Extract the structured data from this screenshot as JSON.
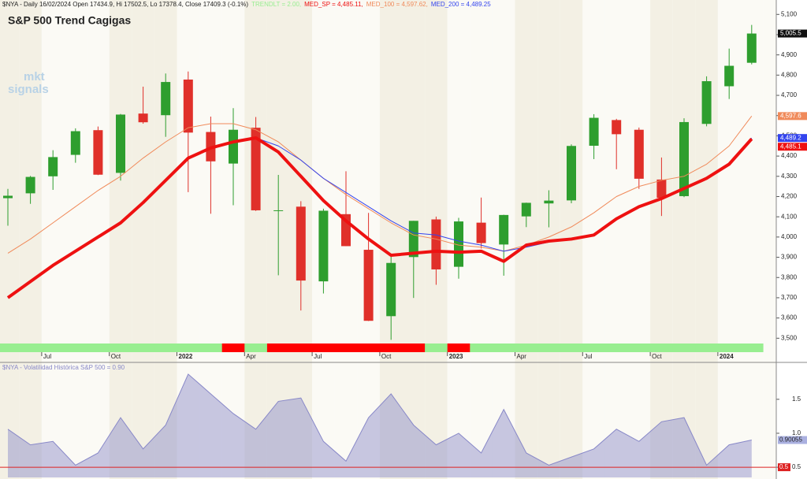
{
  "chart_data": [
    {
      "type": "candlestick",
      "header": "$NYA - Daily 16/02/2024 Open 17434.9, Hi 17502.5, Lo 17378.4, Close 17409.3 (-0.1%)",
      "title": "S&P 500 Trend Cagigas",
      "watermark": [
        "mkt",
        "signals"
      ],
      "categories": [
        null,
        null,
        "Jul",
        null,
        null,
        "Oct",
        null,
        null,
        "2022",
        null,
        null,
        "Apr",
        null,
        null,
        "Jul",
        null,
        null,
        "Oct",
        null,
        null,
        "2023",
        null,
        null,
        "Apr",
        null,
        null,
        "Jul",
        null,
        null,
        "Oct",
        null,
        null,
        "2024",
        null
      ],
      "open": [
        4192,
        4216,
        4300,
        4406,
        4528,
        4317,
        4610,
        4602,
        4778,
        4519,
        4363,
        4540,
        4130,
        4150,
        3781,
        4113,
        3937,
        3609,
        3901,
        4087,
        3853,
        4071,
        3963,
        4102,
        4166,
        4181,
        4451,
        4578,
        4530,
        4284,
        4202,
        4559,
        4745,
        4861
      ],
      "high": [
        4238,
        4302,
        4429,
        4537,
        4546,
        4608,
        4743,
        4808,
        4818,
        4595,
        4637,
        4593,
        4307,
        4177,
        4140,
        4325,
        4119,
        3906,
        4080,
        4101,
        4095,
        4195,
        4110,
        4170,
        4231,
        4458,
        4607,
        4584,
        4541,
        4393,
        4587,
        4794,
        4931,
        5048
      ],
      "low": [
        4056,
        4164,
        4233,
        4367,
        4306,
        4279,
        4560,
        4495,
        4222,
        4115,
        4157,
        4129,
        3811,
        3637,
        3721,
        3955,
        3585,
        3492,
        3699,
        3764,
        3794,
        3943,
        3809,
        4049,
        4048,
        4167,
        4385,
        4335,
        4238,
        4104,
        4197,
        4547,
        4682,
        4853
      ],
      "close": [
        4204,
        4297,
        4395,
        4523,
        4308,
        4605,
        4567,
        4766,
        4516,
        4374,
        4530,
        4132,
        4132,
        3785,
        4130,
        3955,
        3586,
        3872,
        4080,
        3840,
        4077,
        3970,
        4109,
        4169,
        4180,
        4450,
        4589,
        4508,
        4288,
        4194,
        4568,
        4770,
        4846,
        5005.5
      ],
      "last_label": "5,005.5",
      "up_color": "#2e9e2e",
      "down_color": "#e0302a",
      "trend": {
        "name": "TRENDLT = 2.00,",
        "colors": [
          "#98ee90",
          "#98ee90",
          "#98ee90",
          "#98ee90",
          "#98ee90",
          "#98ee90",
          "#98ee90",
          "#98ee90",
          "#98ee90",
          "#98ee90",
          "#ff0000",
          "#98ee90",
          "#ff0000",
          "#ff0000",
          "#ff0000",
          "#ff0000",
          "#ff0000",
          "#ff0000",
          "#ff0000",
          "#98ee90",
          "#ff0000",
          "#98ee90",
          "#98ee90",
          "#98ee90",
          "#98ee90",
          "#98ee90",
          "#98ee90",
          "#98ee90",
          "#98ee90",
          "#98ee90",
          "#98ee90",
          "#98ee90",
          "#98ee90",
          "#98ee90"
        ]
      },
      "series": [
        {
          "name": "MED_SP = 4,485.11,",
          "color": "#ee1111",
          "width": 4,
          "last_label": "4,485.1",
          "values": [
            3700,
            3780,
            3860,
            3930,
            4000,
            4070,
            4170,
            4280,
            4390,
            4440,
            4470,
            4490,
            4420,
            4300,
            4180,
            4080,
            3990,
            3910,
            3920,
            3930,
            3925,
            3930,
            3880,
            3960,
            3980,
            3990,
            4010,
            4090,
            4150,
            4190,
            4240,
            4290,
            4360,
            4485.11
          ]
        },
        {
          "name": "MED_100 = 4,597.62,",
          "color": "#f08a5a",
          "width": 1,
          "last_label": "4,597.6",
          "values": [
            3920,
            3990,
            4070,
            4150,
            4230,
            4300,
            4390,
            4470,
            4540,
            4560,
            4560,
            4530,
            4470,
            4380,
            4290,
            4210,
            4140,
            4070,
            4010,
            3990,
            3960,
            3950,
            3930,
            3960,
            4000,
            4050,
            4120,
            4200,
            4250,
            4280,
            4300,
            4360,
            4450,
            4597.62
          ]
        },
        {
          "name": "MED_200 = 4,489.25",
          "color": "#3344ee",
          "width": 1,
          "last_label": "4,489.2",
          "values": [
            3700,
            3780,
            3860,
            3930,
            4000,
            4070,
            4170,
            4280,
            4390,
            4440,
            4470,
            4490,
            4450,
            4380,
            4290,
            4220,
            4150,
            4080,
            4020,
            4010,
            3980,
            3960,
            3930,
            3950,
            3975,
            3990,
            4010,
            4090,
            4150,
            4190,
            4240,
            4290,
            4360,
            4489.25
          ]
        }
      ],
      "ylim": [
        3400,
        5140
      ],
      "yticks": [
        {
          "value": 3500,
          "label": "3,500"
        },
        {
          "value": 3600,
          "label": "3,600"
        },
        {
          "value": 3700,
          "label": "3,700"
        },
        {
          "value": 3800,
          "label": "3,800"
        },
        {
          "value": 3900,
          "label": "3,900"
        },
        {
          "value": 4000,
          "label": "4,000"
        },
        {
          "value": 4100,
          "label": "4,100"
        },
        {
          "value": 4200,
          "label": "4,200"
        },
        {
          "value": 4300,
          "label": "4,300"
        },
        {
          "value": 4400,
          "label": "4,400"
        },
        {
          "value": 4500,
          "label": "4,500"
        },
        {
          "value": 4600,
          "label": "4,600"
        },
        {
          "value": 4700,
          "label": "4,700"
        },
        {
          "value": 4800,
          "label": "4,800"
        },
        {
          "value": 4900,
          "label": "4,900"
        },
        {
          "value": 5000,
          "label": "5,000"
        },
        {
          "value": 5100,
          "label": "5,100"
        }
      ]
    },
    {
      "type": "area",
      "title": "$NYA - Volatilidad Histórica S&P 500 = 0.90",
      "color": "#8888c8",
      "values": [
        1.06,
        0.83,
        0.88,
        0.53,
        0.71,
        1.23,
        0.77,
        1.12,
        1.87,
        1.58,
        1.29,
        1.06,
        1.47,
        1.52,
        0.88,
        0.59,
        1.23,
        1.58,
        1.12,
        0.83,
        1.0,
        0.71,
        1.35,
        0.71,
        0.53,
        0.65,
        0.77,
        1.06,
        0.88,
        1.17,
        1.23,
        0.53,
        0.83,
        0.90055
      ],
      "last_label": "0.90055",
      "hline": {
        "value": 0.5,
        "label": "0.5",
        "color": "#dd2222"
      },
      "ylim": [
        0.35,
        2.02
      ],
      "yticks": [
        0.5,
        {
          "value": 1,
          "label": "1.0"
        },
        1.5
      ]
    }
  ]
}
